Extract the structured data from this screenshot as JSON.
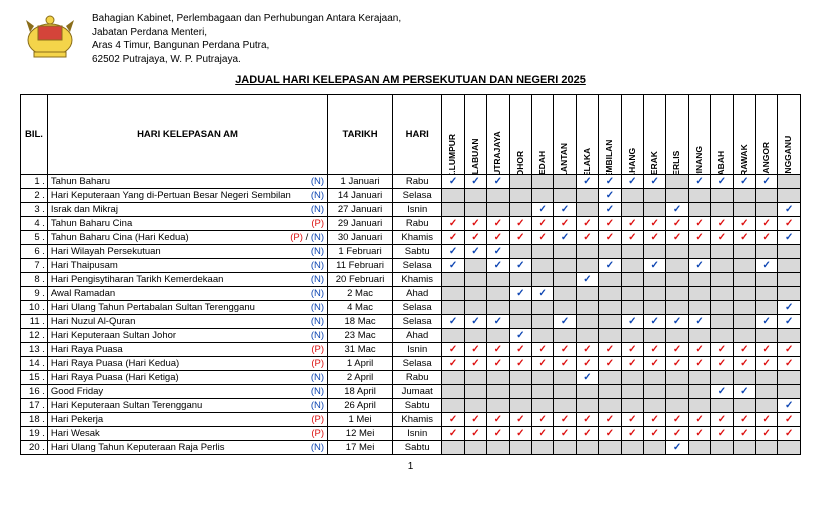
{
  "header": {
    "line1": "Bahagian Kabinet, Perlembagaan dan Perhubungan Antara Kerajaan,",
    "line2": "Jabatan Perdana Menteri,",
    "line3": "Aras 4 Timur, Bangunan Perdana Putra,",
    "line4": "62502 Putrajaya, W. P. Putrajaya."
  },
  "title": "JADUAL HARI KELEPASAN AM PERSEKUTUAN DAN NEGERI 2025",
  "columns": {
    "bil": "BIL.",
    "name": "HARI KELEPASAN AM",
    "date": "TARIKH",
    "day": "HARI"
  },
  "states": [
    "W.P. K.LUMPUR",
    "W.P. LABUAN",
    "W.P. PUTRAJAYA",
    "JOHOR",
    "KEDAH",
    "KELANTAN",
    "MELAKA",
    "N.SEMBILAN",
    "PAHANG",
    "PERAK",
    "PERLIS",
    "P.PINANG",
    "SABAH",
    "SARAWAK",
    "SELANGOR",
    "TERENGGANU"
  ],
  "rows": [
    {
      "n": "1",
      "name": "Tahun Baharu",
      "note": "(N)",
      "date": "1 Januari",
      "day": "Rabu",
      "cells": [
        "b",
        "b",
        "b",
        "g",
        "g",
        "g",
        "b",
        "b",
        "b",
        "b",
        "g",
        "b",
        "b",
        "b",
        "b",
        "g"
      ]
    },
    {
      "n": "2",
      "name": "Hari Keputeraan Yang di-Pertuan Besar Negeri Sembilan",
      "note": "(N)",
      "date": "14 Januari",
      "day": "Selasa",
      "cells": [
        "g",
        "g",
        "g",
        "g",
        "g",
        "g",
        "g",
        "b",
        "g",
        "g",
        "g",
        "g",
        "g",
        "g",
        "g",
        "g"
      ]
    },
    {
      "n": "3",
      "name": "Israk dan Mikraj",
      "note": "(N)",
      "date": "27 Januari",
      "day": "Isnin",
      "cells": [
        "g",
        "g",
        "g",
        "g",
        "b",
        "b",
        "g",
        "b",
        "g",
        "g",
        "b",
        "g",
        "g",
        "g",
        "g",
        "b"
      ]
    },
    {
      "n": "4",
      "name": "Tahun Baharu Cina",
      "note": "(P)",
      "date": "29 Januari",
      "day": "Rabu",
      "cells": [
        "r",
        "r",
        "r",
        "r",
        "r",
        "r",
        "r",
        "r",
        "r",
        "r",
        "r",
        "r",
        "r",
        "r",
        "r",
        "r"
      ]
    },
    {
      "n": "5",
      "name": "Tahun Baharu Cina (Hari Kedua)",
      "note": "(P) / (N)",
      "date": "30 Januari",
      "day": "Khamis",
      "cells": [
        "r",
        "r",
        "r",
        "r",
        "r",
        "b",
        "r",
        "r",
        "r",
        "r",
        "r",
        "r",
        "r",
        "r",
        "r",
        "b"
      ]
    },
    {
      "n": "6",
      "name": "Hari Wilayah Persekutuan",
      "note": "(N)",
      "date": "1 Februari",
      "day": "Sabtu",
      "cells": [
        "b",
        "b",
        "b",
        "g",
        "g",
        "g",
        "g",
        "g",
        "g",
        "g",
        "g",
        "g",
        "g",
        "g",
        "g",
        "g"
      ]
    },
    {
      "n": "7",
      "name": "Hari Thaipusam",
      "note": "(N)",
      "date": "11 Februari",
      "day": "Selasa",
      "cells": [
        "b",
        "g",
        "b",
        "b",
        "g",
        "g",
        "g",
        "b",
        "g",
        "b",
        "g",
        "b",
        "g",
        "g",
        "b",
        "g"
      ]
    },
    {
      "n": "8",
      "name": "Hari Pengisytiharan Tarikh Kemerdekaan",
      "note": "(N)",
      "date": "20 Februari",
      "day": "Khamis",
      "cells": [
        "g",
        "g",
        "g",
        "g",
        "g",
        "g",
        "b",
        "g",
        "g",
        "g",
        "g",
        "g",
        "g",
        "g",
        "g",
        "g"
      ]
    },
    {
      "n": "9",
      "name": "Awal Ramadan",
      "note": "(N)",
      "date": "2 Mac",
      "day": "Ahad",
      "cells": [
        "g",
        "g",
        "g",
        "b",
        "b",
        "g",
        "g",
        "g",
        "g",
        "g",
        "g",
        "g",
        "g",
        "g",
        "g",
        "g"
      ]
    },
    {
      "n": "10",
      "name": "Hari Ulang Tahun Pertabalan Sultan Terengganu",
      "note": "(N)",
      "date": "4 Mac",
      "day": "Selasa",
      "cells": [
        "g",
        "g",
        "g",
        "g",
        "g",
        "g",
        "g",
        "g",
        "g",
        "g",
        "g",
        "g",
        "g",
        "g",
        "g",
        "b"
      ]
    },
    {
      "n": "11",
      "name": "Hari Nuzul Al-Quran",
      "note": "(N)",
      "date": "18 Mac",
      "day": "Selasa",
      "cells": [
        "b",
        "b",
        "b",
        "g",
        "g",
        "b",
        "g",
        "g",
        "b",
        "b",
        "b",
        "b",
        "g",
        "g",
        "b",
        "b"
      ]
    },
    {
      "n": "12",
      "name": "Hari Keputeraan Sultan Johor",
      "note": "(N)",
      "date": "23 Mac",
      "day": "Ahad",
      "cells": [
        "g",
        "g",
        "g",
        "b",
        "g",
        "g",
        "g",
        "g",
        "g",
        "g",
        "g",
        "g",
        "g",
        "g",
        "g",
        "g"
      ]
    },
    {
      "n": "13",
      "name": "Hari Raya Puasa",
      "note": "(P)",
      "date": "31 Mac",
      "day": "Isnin",
      "cells": [
        "r",
        "r",
        "r",
        "r",
        "r",
        "r",
        "r",
        "r",
        "r",
        "r",
        "r",
        "r",
        "r",
        "r",
        "r",
        "r"
      ]
    },
    {
      "n": "14",
      "name": "Hari Raya Puasa (Hari Kedua)",
      "note": "(P)",
      "date": "1 April",
      "day": "Selasa",
      "cells": [
        "r",
        "r",
        "r",
        "r",
        "r",
        "r",
        "r",
        "r",
        "r",
        "r",
        "r",
        "r",
        "r",
        "r",
        "r",
        "r"
      ]
    },
    {
      "n": "15",
      "name": "Hari Raya Puasa (Hari Ketiga)",
      "note": "(N)",
      "date": "2 April",
      "day": "Rabu",
      "cells": [
        "g",
        "g",
        "g",
        "g",
        "g",
        "g",
        "b",
        "g",
        "g",
        "g",
        "g",
        "g",
        "g",
        "g",
        "g",
        "g"
      ]
    },
    {
      "n": "16",
      "name": "Good Friday",
      "note": "(N)",
      "date": "18 April",
      "day": "Jumaat",
      "cells": [
        "g",
        "g",
        "g",
        "g",
        "g",
        "g",
        "g",
        "g",
        "g",
        "g",
        "g",
        "g",
        "b",
        "b",
        "g",
        "g"
      ]
    },
    {
      "n": "17",
      "name": "Hari Keputeraan Sultan Terengganu",
      "note": "(N)",
      "date": "26 April",
      "day": "Sabtu",
      "cells": [
        "g",
        "g",
        "g",
        "g",
        "g",
        "g",
        "g",
        "g",
        "g",
        "g",
        "g",
        "g",
        "g",
        "g",
        "g",
        "b"
      ]
    },
    {
      "n": "18",
      "name": "Hari Pekerja",
      "note": "(P)",
      "date": "1 Mei",
      "day": "Khamis",
      "cells": [
        "r",
        "r",
        "r",
        "r",
        "r",
        "r",
        "r",
        "r",
        "r",
        "r",
        "r",
        "r",
        "r",
        "r",
        "r",
        "r"
      ]
    },
    {
      "n": "19",
      "name": "Hari Wesak",
      "note": "(P)",
      "date": "12 Mei",
      "day": "Isnin",
      "cells": [
        "r",
        "r",
        "r",
        "r",
        "r",
        "r",
        "r",
        "r",
        "r",
        "r",
        "r",
        "r",
        "r",
        "r",
        "r",
        "r"
      ]
    },
    {
      "n": "20",
      "name": "Hari Ulang Tahun Keputeraan Raja Perlis",
      "note": "(N)",
      "date": "17 Mei",
      "day": "Sabtu",
      "cells": [
        "g",
        "g",
        "g",
        "g",
        "g",
        "g",
        "g",
        "g",
        "g",
        "g",
        "b",
        "g",
        "g",
        "g",
        "g",
        "g"
      ]
    }
  ],
  "page_number": "1"
}
